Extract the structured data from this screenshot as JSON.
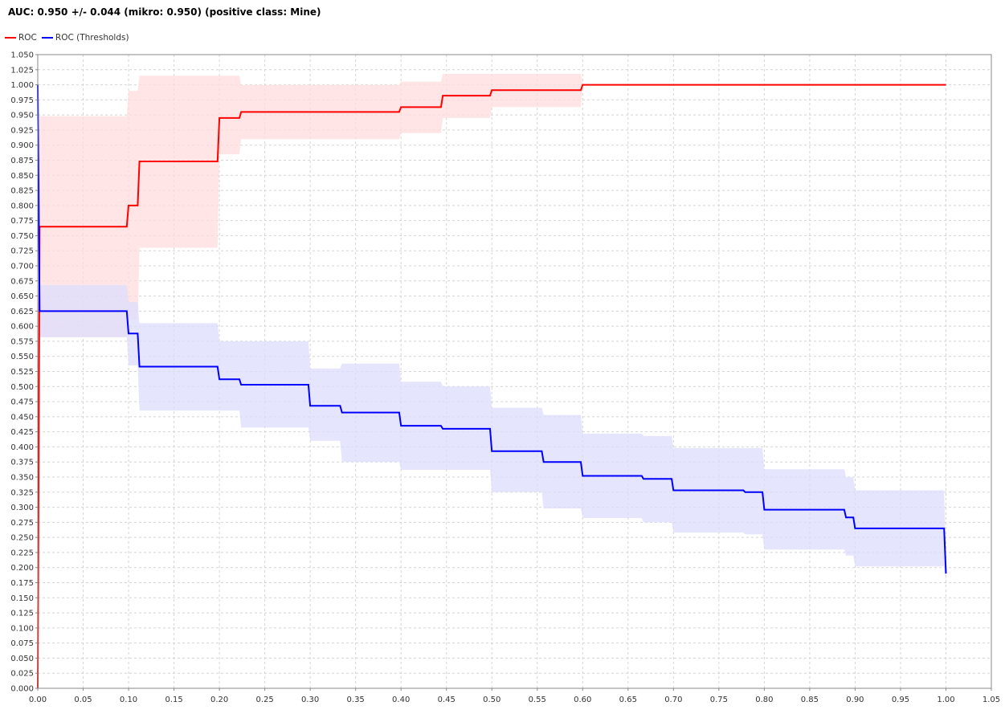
{
  "chart_data": {
    "type": "line",
    "title": "AUC: 0.950 +/- 0.044 (mikro: 0.950) (positive class: Mine)",
    "xlim": [
      0,
      1.05
    ],
    "ylim": [
      0,
      1.05
    ],
    "x_ticks": [
      "0.00",
      "0.05",
      "0.10",
      "0.15",
      "0.20",
      "0.25",
      "0.30",
      "0.35",
      "0.40",
      "0.45",
      "0.50",
      "0.55",
      "0.60",
      "0.65",
      "0.70",
      "0.75",
      "0.80",
      "0.85",
      "0.90",
      "0.95",
      "1.00",
      "1.05"
    ],
    "y_ticks": [
      "0.000",
      "0.025",
      "0.050",
      "0.075",
      "0.100",
      "0.125",
      "0.150",
      "0.175",
      "0.200",
      "0.225",
      "0.250",
      "0.275",
      "0.300",
      "0.325",
      "0.350",
      "0.375",
      "0.400",
      "0.425",
      "0.450",
      "0.475",
      "0.500",
      "0.525",
      "0.550",
      "0.575",
      "0.600",
      "0.625",
      "0.650",
      "0.675",
      "0.700",
      "0.725",
      "0.750",
      "0.775",
      "0.800",
      "0.825",
      "0.850",
      "0.875",
      "0.900",
      "0.925",
      "0.950",
      "0.975",
      "1.000",
      "1.025",
      "1.050"
    ],
    "grid": true,
    "legend_position": "top-left",
    "series": [
      {
        "name": "ROC",
        "color": "#ff0000",
        "band_color": "#ffdcdc",
        "x": [
          0,
          0.002,
          0.002,
          0.098,
          0.1,
          0.11,
          0.112,
          0.198,
          0.2,
          0.222,
          0.224,
          0.398,
          0.4,
          0.444,
          0.446,
          0.498,
          0.5,
          0.598,
          0.6,
          1.0
        ],
        "y": [
          0,
          0.765,
          0.765,
          0.765,
          0.8,
          0.8,
          0.873,
          0.873,
          0.945,
          0.945,
          0.955,
          0.955,
          0.963,
          0.963,
          0.982,
          0.982,
          0.991,
          0.991,
          1.0,
          1.0
        ],
        "lower": [
          0,
          0.582,
          0.582,
          0.582,
          0.61,
          0.61,
          0.73,
          0.73,
          0.885,
          0.885,
          0.91,
          0.91,
          0.92,
          0.92,
          0.945,
          0.945,
          0.963,
          0.963,
          1.0,
          1.0
        ],
        "upper": [
          0,
          0.948,
          0.948,
          0.948,
          0.99,
          0.99,
          1.015,
          1.015,
          1.015,
          1.015,
          1.0,
          1.0,
          1.005,
          1.005,
          1.018,
          1.018,
          1.018,
          1.018,
          1.0,
          1.0
        ]
      },
      {
        "name": "ROC (Thresholds)",
        "color": "#0000ff",
        "band_color": "#dcdcfc",
        "x": [
          0,
          0.002,
          0.002,
          0.098,
          0.1,
          0.11,
          0.112,
          0.198,
          0.2,
          0.222,
          0.224,
          0.298,
          0.3,
          0.333,
          0.335,
          0.398,
          0.4,
          0.444,
          0.446,
          0.498,
          0.5,
          0.555,
          0.557,
          0.598,
          0.6,
          0.665,
          0.667,
          0.698,
          0.7,
          0.777,
          0.779,
          0.798,
          0.8,
          0.888,
          0.89,
          0.898,
          0.9,
          0.998,
          1.0
        ],
        "y": [
          1.0,
          0.625,
          0.625,
          0.625,
          0.588,
          0.588,
          0.533,
          0.533,
          0.512,
          0.512,
          0.503,
          0.503,
          0.468,
          0.468,
          0.457,
          0.457,
          0.435,
          0.435,
          0.43,
          0.43,
          0.393,
          0.393,
          0.375,
          0.375,
          0.352,
          0.352,
          0.347,
          0.347,
          0.328,
          0.328,
          0.325,
          0.325,
          0.296,
          0.296,
          0.283,
          0.283,
          0.265,
          0.265,
          0.19
        ],
        "lower": [
          1.0,
          0.582,
          0.582,
          0.582,
          0.535,
          0.535,
          0.46,
          0.46,
          0.46,
          0.46,
          0.432,
          0.432,
          0.41,
          0.41,
          0.375,
          0.375,
          0.362,
          0.362,
          0.362,
          0.362,
          0.325,
          0.325,
          0.298,
          0.298,
          0.282,
          0.282,
          0.275,
          0.275,
          0.258,
          0.258,
          0.255,
          0.255,
          0.23,
          0.23,
          0.22,
          0.22,
          0.202,
          0.202,
          0.175
        ],
        "upper": [
          1.0,
          0.668,
          0.668,
          0.668,
          0.64,
          0.64,
          0.605,
          0.605,
          0.575,
          0.575,
          0.575,
          0.575,
          0.53,
          0.53,
          0.538,
          0.538,
          0.508,
          0.508,
          0.5,
          0.5,
          0.465,
          0.465,
          0.453,
          0.453,
          0.422,
          0.422,
          0.418,
          0.418,
          0.398,
          0.398,
          0.398,
          0.398,
          0.363,
          0.363,
          0.35,
          0.35,
          0.328,
          0.328,
          0.21
        ]
      }
    ]
  }
}
